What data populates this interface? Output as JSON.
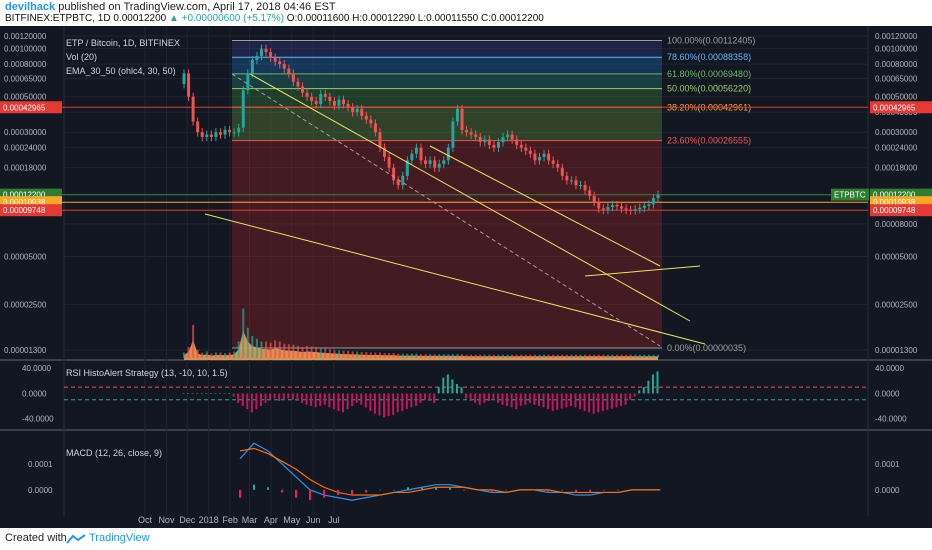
{
  "header": {
    "author": "devilhack",
    "published_text": "published on TradingView.com, April 17, 2018 04:46 EST",
    "symbol_line": "BITFINEX:ETPBTC, 1D",
    "last": "0.00012200",
    "change": "▲ +0.00000600 (+5.17%)",
    "ohlc": "O:0.00011600 H:0.00012290 L:0.00011550 C:0.00012200"
  },
  "legend": {
    "title": "ETP / Bitcoin, 1D, BITFINEX",
    "vol": "Vol (20)",
    "ema": "EMA_30_50 (ohlc4, 30, 50)",
    "rsi": "RSI HistoAlert Strategy (13, -10, 10, 1.5)",
    "macd": "MACD (12, 26, close, 9)"
  },
  "footer": {
    "created_with": "Created with",
    "brand": "TradingView"
  },
  "colors": {
    "bg": "#131722",
    "up": "#26a69a",
    "down": "#ef5350",
    "trend": "#e6e65c",
    "volume": "#f39c50"
  },
  "chart_data": [
    {
      "type": "candlestick",
      "title": "ETP / Bitcoin, 1D, BITFINEX",
      "x_labels": [
        "Oct",
        "Nov",
        "Dec",
        "2018",
        "Feb",
        "Mar",
        "Apr",
        "May",
        "Jun",
        "Jul"
      ],
      "y_scale": "log",
      "y_ticks": [
        "0.00120000",
        "0.00100000",
        "0.00080000",
        "0.00065000",
        "0.00050000",
        "0.00040000",
        "0.00030000",
        "0.00024000",
        "0.00018000",
        "0.00012000",
        "0.00008000",
        "0.00005000",
        "0.00002500",
        "0.00001300"
      ],
      "y_ticks_left": [
        "0.00120000",
        "0.00100000",
        "0.00080000",
        "0.00065000",
        "0.00050000",
        "0.00030000",
        "0.00024000",
        "0.00018000",
        "0.00005000",
        "0.00002500",
        "0.00001300"
      ],
      "y_tick_values": [
        0.0012,
        0.001,
        0.0008,
        0.00065,
        0.0005,
        0.0004,
        0.0003,
        0.00024,
        0.00018,
        0.00012,
        8e-05,
        5e-05,
        2.5e-05,
        1.3e-05
      ],
      "price_tags": [
        {
          "label": "0.00042965",
          "value": 0.00042965,
          "color": "#e53935"
        },
        {
          "label": "0.00012200",
          "value": 0.000122,
          "color": "#2e7d32",
          "name": "ETPBTC"
        },
        {
          "label": "0.00010938",
          "value": 0.00010938,
          "color": "#f9a825"
        },
        {
          "label": "0.00009748",
          "value": 9.748e-05,
          "color": "#e53935"
        }
      ],
      "fib_levels": [
        {
          "label": "100.00%(0.00112405)",
          "value": 0.00112405,
          "color": "#9e9e9e"
        },
        {
          "label": "78.60%(0.00088358)",
          "value": 0.00088358,
          "color": "#64b5f6"
        },
        {
          "label": "61.80%(0.00069480)",
          "value": 0.0006948,
          "color": "#66bb6a"
        },
        {
          "label": "50.00%(0.00056220)",
          "value": 0.0005622,
          "color": "#9ccc65"
        },
        {
          "label": "38.20%(0.00042961)",
          "value": 0.00042961,
          "color": "#ffa726"
        },
        {
          "label": "23.60%(0.00026555)",
          "value": 0.00026555,
          "color": "#ef5350"
        },
        {
          "label": "0.00%(0.00000035)",
          "value": 3.5e-07,
          "color": "#9e9e9e"
        }
      ],
      "closes": [
        0.0007,
        0.0005,
        0.00035,
        0.0003,
        0.00028,
        0.00029,
        0.00028,
        0.0003,
        0.00029,
        0.00031,
        0.0003,
        0.0003,
        0.00032,
        0.00055,
        0.0007,
        0.00085,
        0.0009,
        0.001,
        0.00095,
        0.00088,
        0.00083,
        0.0008,
        0.00075,
        0.0007,
        0.00062,
        0.00058,
        0.00053,
        0.0005,
        0.00047,
        0.00045,
        0.00052,
        0.0005,
        0.00047,
        0.00044,
        0.00048,
        0.00045,
        0.00043,
        0.0004,
        0.00042,
        0.00038,
        0.00036,
        0.00034,
        0.0003,
        0.00024,
        0.00021,
        0.00018,
        0.00015,
        0.00014,
        0.00016,
        0.0002,
        0.00022,
        0.00024,
        0.0002,
        0.00019,
        0.0002,
        0.00018,
        0.00019,
        0.0002,
        0.00024,
        0.00035,
        0.00042,
        0.00031,
        0.0003,
        0.00029,
        0.00028,
        0.00026,
        0.00027,
        0.00025,
        0.00024,
        0.00026,
        0.00028,
        0.00029,
        0.00027,
        0.00025,
        0.00024,
        0.00023,
        0.00022,
        0.0002,
        0.00021,
        0.00022,
        0.0002,
        0.00019,
        0.00018,
        0.00016,
        0.00015,
        0.00015,
        0.00014,
        0.00014,
        0.00013,
        0.00012,
        0.00011,
        0.0001,
        9.8e-05,
        0.000102,
        0.000105,
        0.000103,
        0.0001,
        9.8e-05,
        9.7e-05,
        9.9e-05,
        0.000101,
        0.000104,
        0.000106,
        0.000116,
        0.000122
      ],
      "volume": [
        0.1,
        0.2,
        0.6,
        0.15,
        0.1,
        0.12,
        0.08,
        0.1,
        0.1,
        0.09,
        0.1,
        0.12,
        0.3,
        0.9,
        0.55,
        0.4,
        0.35,
        0.3,
        0.3,
        0.28,
        0.32,
        0.3,
        0.26,
        0.25,
        0.24,
        0.22,
        0.2,
        0.22,
        0.21,
        0.2,
        0.18,
        0.17,
        0.16,
        0.15,
        0.14,
        0.13,
        0.13,
        0.12,
        0.12,
        0.11,
        0.11,
        0.1,
        0.1,
        0.1,
        0.09,
        0.09,
        0.09,
        0.08,
        0.08,
        0.08,
        0.08,
        0.08,
        0.07,
        0.07,
        0.07,
        0.07,
        0.07,
        0.07,
        0.07,
        0.07,
        0.07,
        0.07,
        0.06,
        0.06,
        0.06,
        0.06,
        0.06,
        0.06,
        0.06,
        0.06,
        0.06,
        0.06,
        0.06,
        0.06,
        0.06,
        0.06,
        0.06,
        0.06,
        0.06,
        0.06,
        0.06,
        0.06,
        0.06,
        0.06,
        0.06,
        0.06,
        0.06,
        0.06,
        0.06,
        0.06,
        0.06,
        0.06,
        0.06,
        0.06,
        0.06,
        0.06,
        0.06,
        0.06,
        0.06,
        0.06,
        0.06,
        0.06,
        0.06,
        0.06,
        0.06
      ]
    },
    {
      "type": "bar",
      "title": "RSI HistoAlert Strategy (13, -10, 10, 1.5)",
      "y_ticks": [
        "40.0000",
        "0.0000",
        "-40.0000"
      ],
      "y_tick_values": [
        40,
        0,
        -40
      ],
      "ylim": [
        -50,
        45
      ],
      "values": [
        0,
        0,
        0,
        0,
        0,
        0,
        0,
        0,
        0,
        0,
        0,
        -5,
        -15,
        -20,
        -25,
        -30,
        -25,
        -20,
        -15,
        -10,
        -8,
        -12,
        -10,
        -8,
        -10,
        -12,
        -15,
        -18,
        -20,
        -22,
        -20,
        -18,
        -22,
        -25,
        -28,
        -30,
        -25,
        -20,
        -15,
        -18,
        -22,
        -28,
        -32,
        -35,
        -38,
        -36,
        -34,
        -30,
        -28,
        -25,
        -22,
        -20,
        -15,
        -10,
        -12,
        -15,
        10,
        25,
        30,
        22,
        15,
        10,
        -8,
        -12,
        -15,
        -18,
        -15,
        -12,
        -10,
        -15,
        -18,
        -20,
        -22,
        -25,
        -20,
        -18,
        -15,
        -18,
        -20,
        -22,
        -25,
        -28,
        -26,
        -24,
        -22,
        -20,
        -22,
        -25,
        -28,
        -30,
        -32,
        -30,
        -28,
        -26,
        -24,
        -22,
        -20,
        -18,
        -10,
        -5,
        5,
        10,
        20,
        30,
        35
      ]
    },
    {
      "type": "line",
      "title": "MACD (12, 26, close, 9)",
      "y_ticks": [
        "0.0001",
        "0.0000"
      ],
      "y_tick_values": [
        0.0001,
        0
      ],
      "ylim": [
        -7e-05,
        0.0002
      ],
      "series": [
        {
          "name": "MACD",
          "values": [
            0.00012,
            0.00018,
            0.00015,
            0.0001,
            5e-05,
            0.0,
            -2e-05,
            -3e-05,
            -4e-05,
            -3e-05,
            -2e-05,
            -1e-05,
            0.0,
            1e-05,
            2e-05,
            2e-05,
            1e-05,
            0.0,
            -1e-05,
            -1e-05,
            0.0,
            0.0,
            -1e-05,
            -1e-05,
            -2e-05,
            -2e-05,
            -1e-05,
            -1e-05,
            0.0,
            0.0,
            0.0
          ]
        },
        {
          "name": "Signal",
          "values": [
            0.00015,
            0.00016,
            0.00014,
            0.00011,
            8e-05,
            4e-05,
            1e-05,
            -1e-05,
            -2e-05,
            -2e-05,
            -2e-05,
            -1e-05,
            -1e-05,
            0.0,
            1e-05,
            1e-05,
            1e-05,
            0.0,
            0.0,
            -1e-05,
            0.0,
            0.0,
            0.0,
            -1e-05,
            -1e-05,
            -1e-05,
            -1e-05,
            -1e-05,
            0.0,
            0.0,
            0.0
          ]
        }
      ]
    }
  ]
}
